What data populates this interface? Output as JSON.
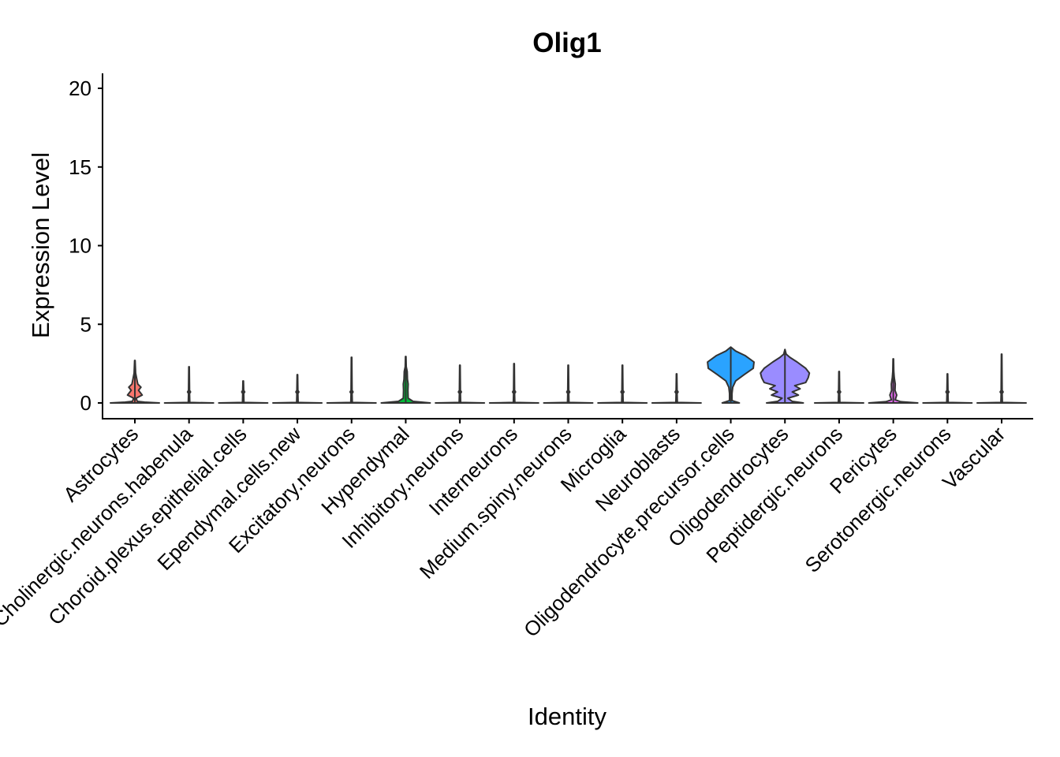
{
  "chart_data": {
    "type": "violin",
    "title": "Olig1",
    "xlabel": "Identity",
    "ylabel": "Expression Level",
    "ylim": [
      -1,
      21
    ],
    "yticks": [
      0,
      5,
      10,
      15,
      20
    ],
    "grid": false,
    "legend": "none",
    "categories": [
      "Astrocytes",
      "Cholinergic.neurons.habenula",
      "Choroid.plexus.epithelial.cells",
      "Ependymal.cells.new",
      "Excitatory.neurons",
      "Hypendymal",
      "Inhibitory.neurons",
      "Interneurons",
      "Medium.spiny.neurons",
      "Microglia",
      "Neuroblasts",
      "Oligodendrocyte.precursor.cells",
      "Oligodendrocytes",
      "Peptidergic.neurons",
      "Pericytes",
      "Serotonergic.neurons",
      "Vascular"
    ],
    "colors": [
      "#F8766D",
      "#E58700",
      "#C99800",
      "#A3A500",
      "#6BB100",
      "#00BA38",
      "#00BF7D",
      "#00C0AF",
      "#00BCD8",
      "#00B0F6",
      "#619CFF",
      "#2AA3FF",
      "#9A8CFF",
      "#E76BF3",
      "#E76BF3",
      "#FD61D1",
      "#FF67A4"
    ],
    "max_values": [
      2.7,
      2.3,
      1.4,
      1.8,
      2.9,
      2.95,
      2.4,
      2.5,
      2.4,
      2.4,
      1.85,
      3.55,
      3.4,
      2.0,
      2.8,
      1.85,
      3.1
    ],
    "density_profiles": {
      "Astrocytes": [
        [
          0,
          1
        ],
        [
          0.05,
          0.4
        ],
        [
          0.1,
          0.1
        ],
        [
          0.3,
          0.05
        ],
        [
          0.5,
          0.3
        ],
        [
          0.8,
          0.15
        ],
        [
          1.0,
          0.25
        ],
        [
          1.2,
          0.12
        ],
        [
          1.5,
          0.08
        ],
        [
          1.9,
          0.03
        ],
        [
          2.7,
          0.01
        ]
      ],
      "Hypendymal": [
        [
          0,
          1
        ],
        [
          0.1,
          0.3
        ],
        [
          0.3,
          0.1
        ],
        [
          0.8,
          0.09
        ],
        [
          1.2,
          0.1
        ],
        [
          1.5,
          0.07
        ],
        [
          2.0,
          0.06
        ],
        [
          2.3,
          0.02
        ],
        [
          2.95,
          0.01
        ]
      ],
      "Oligodendrocyte.precursor.cells": [
        [
          0,
          0.35
        ],
        [
          0.15,
          0.05
        ],
        [
          0.6,
          0.05
        ],
        [
          1.0,
          0.08
        ],
        [
          1.4,
          0.2
        ],
        [
          1.8,
          0.55
        ],
        [
          2.2,
          0.92
        ],
        [
          2.6,
          0.95
        ],
        [
          3.0,
          0.6
        ],
        [
          3.3,
          0.2
        ],
        [
          3.55,
          0
        ]
      ],
      "Oligodendrocytes": [
        [
          0,
          0.75
        ],
        [
          0.1,
          0.3
        ],
        [
          0.3,
          0.12
        ],
        [
          0.5,
          0.55
        ],
        [
          0.7,
          0.3
        ],
        [
          0.9,
          0.62
        ],
        [
          1.1,
          0.4
        ],
        [
          1.3,
          0.85
        ],
        [
          1.6,
          0.95
        ],
        [
          1.9,
          1.0
        ],
        [
          2.2,
          0.85
        ],
        [
          2.6,
          0.5
        ],
        [
          2.9,
          0.2
        ],
        [
          3.1,
          0.05
        ],
        [
          3.4,
          0
        ]
      ],
      "Pericytes": [
        [
          0,
          1
        ],
        [
          0.08,
          0.3
        ],
        [
          0.2,
          0.08
        ],
        [
          0.5,
          0.14
        ],
        [
          0.8,
          0.07
        ],
        [
          1.2,
          0.08
        ],
        [
          1.6,
          0.04
        ],
        [
          2.0,
          0.02
        ],
        [
          2.8,
          0.01
        ]
      ]
    }
  }
}
